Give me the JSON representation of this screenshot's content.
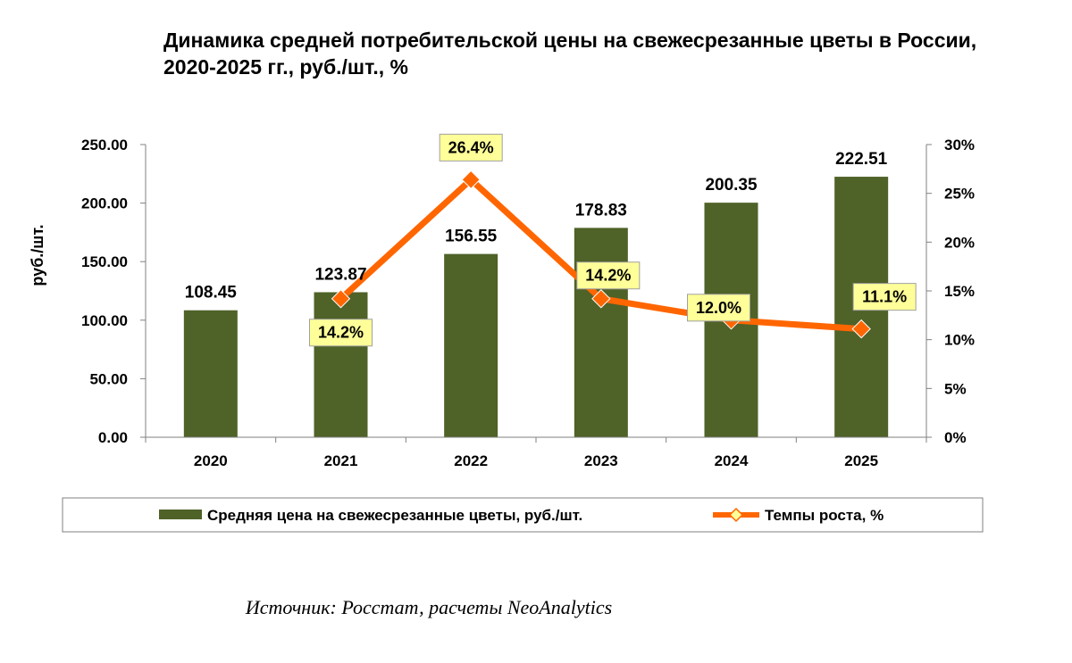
{
  "title": "Динамика средней потребительской цены на свежесрезанные цветы в России, 2020-2025 гг., руб./шт., %",
  "source": "Источник: Росстат, расчеты NeoAnalytics",
  "colors": {
    "bar": "#4f6228",
    "line": "#ff6600",
    "marker": "#ff6600",
    "label_bg": "#ffff99",
    "axis": "#808080"
  },
  "chart_data": {
    "type": "bar",
    "categories": [
      "2020",
      "2021",
      "2022",
      "2023",
      "2024",
      "2025"
    ],
    "series": [
      {
        "name": "Средняя цена на свежесрезанные цветы, руб./шт.",
        "type": "bar",
        "axis": "left",
        "values": [
          108.45,
          123.87,
          156.55,
          178.83,
          200.35,
          222.51
        ],
        "labels": [
          "108.45",
          "123.87",
          "156.55",
          "178.83",
          "200.35",
          "222.51"
        ]
      },
      {
        "name": "Темпы роста, %",
        "type": "line",
        "axis": "right",
        "values": [
          null,
          14.2,
          26.4,
          14.2,
          12.0,
          11.1
        ],
        "labels": [
          "",
          "14.2%",
          "26.4%",
          "14.2%",
          "12.0%",
          "11.1%"
        ]
      }
    ],
    "ylabel": "руб./шт.",
    "ylim": [
      0,
      250
    ],
    "yticks": [
      "0.00",
      "50.00",
      "100.00",
      "150.00",
      "200.00",
      "250.00"
    ],
    "y2lim": [
      0,
      30
    ],
    "y2ticks": [
      "0%",
      "5%",
      "10%",
      "15%",
      "20%",
      "25%",
      "30%"
    ],
    "grid": false,
    "legend_position": "bottom"
  }
}
